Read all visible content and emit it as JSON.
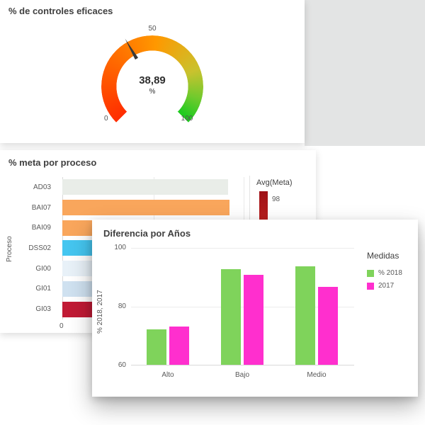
{
  "colors": {
    "card_bg": "#ffffff",
    "canvas_gray": "#e3e4e4",
    "title_text": "#404040",
    "axis_text": "#595959",
    "gauge_red": "#ff2d00",
    "gauge_orange": "#ff9800",
    "gauge_green": "#21cb21",
    "diff_green": "#7fd35b",
    "diff_magenta": "#ff2fce"
  },
  "gauge_card": {
    "title": "% de controles eficaces",
    "value_num": 38.89,
    "value_display": "38,89",
    "unit": "%",
    "tick_start": "0",
    "tick_mid": "50",
    "tick_end": "100"
  },
  "meta_card": {
    "title": "% meta por proceso",
    "y_axis_label": "Proceso",
    "x_tick_zero": "0",
    "legend_title": "Avg(Meta)",
    "legend_value": "98",
    "rows": [
      {
        "label": "AD03",
        "color": "#e9ede8",
        "width_pct": 91
      },
      {
        "label": "BAI07",
        "color": "#f9a65c",
        "width_pct": 92
      },
      {
        "label": "BAI09",
        "color": "#f9a65c",
        "width_pct": 92
      },
      {
        "label": "DSS02",
        "color": "#45c6f0",
        "width_pct": 88
      },
      {
        "label": "GI00",
        "color": "#e8f1f8",
        "width_pct": 90
      },
      {
        "label": "GI01",
        "color": "#cfe1f0",
        "width_pct": 85
      },
      {
        "label": "GI03",
        "color": "#c11a35",
        "width_pct": 80
      }
    ]
  },
  "diff_card": {
    "title": "Diferencia por Años",
    "y_axis_label": "% 2018, 2017",
    "y_ticks": [
      "100",
      "80",
      "60"
    ],
    "categories": [
      "Alto",
      "Bajo",
      "Medio"
    ],
    "legend_title": "Medidas",
    "series": [
      {
        "name": "% 2018",
        "color": "#7fd35b",
        "values": [
          72,
          92.5,
          93.5
        ]
      },
      {
        "name": "2017",
        "color": "#ff2fce",
        "values": [
          73,
          90.5,
          86.5
        ]
      }
    ]
  },
  "chart_data": [
    {
      "type": "gauge",
      "title": "% de controles eficaces",
      "value": 38.89,
      "unit": "%",
      "min": 0,
      "max": 100,
      "ticks": [
        0,
        50,
        100
      ],
      "segment_colors": [
        "#ff2d00",
        "#ff9800",
        "#21cb21"
      ]
    },
    {
      "type": "bar",
      "orientation": "horizontal",
      "title": "% meta por proceso",
      "ylabel": "Proceso",
      "categories": [
        "AD03",
        "BAI07",
        "BAI09",
        "DSS02",
        "GI00",
        "GI01",
        "GI03"
      ],
      "values_pct_of_axis": [
        91,
        92,
        92,
        88,
        90,
        85,
        80
      ],
      "x_ticks_visible": [
        0
      ],
      "legend": {
        "title": "Avg(Meta)",
        "value": 98,
        "style": "continuous-color-scale"
      }
    },
    {
      "type": "bar",
      "title": "Diferencia por Años",
      "categories": [
        "Alto",
        "Bajo",
        "Medio"
      ],
      "series": [
        {
          "name": "% 2018",
          "values": [
            72,
            92.5,
            93.5
          ]
        },
        {
          "name": "2017",
          "values": [
            73,
            90.5,
            86.5
          ]
        }
      ],
      "ylabel": "% 2018, 2017",
      "ylim": [
        60,
        100
      ],
      "y_ticks": [
        60,
        80,
        100
      ],
      "legend_title": "Medidas",
      "legend_position": "right",
      "grid": true
    }
  ]
}
